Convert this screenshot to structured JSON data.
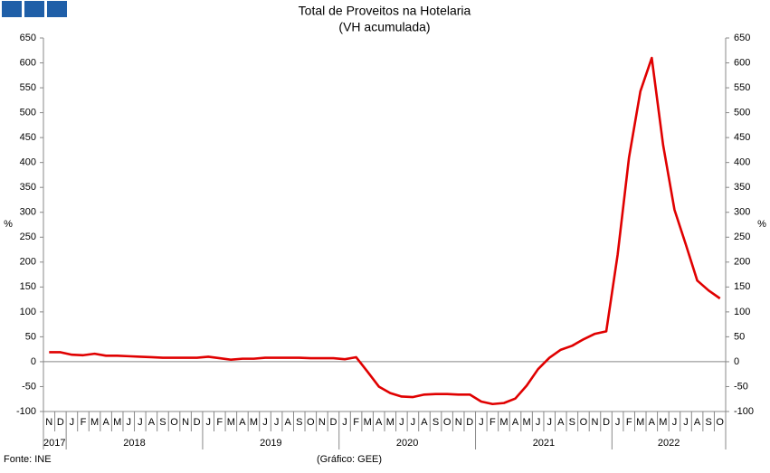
{
  "chart_data": {
    "type": "line",
    "title": "Total de Proveitos na Hotelaria",
    "subtitle": "(VH acumulada)",
    "y_label": "%",
    "source": "Fonte: INE",
    "credit": "(Gráfico: GEE)",
    "categories": [
      "N",
      "D",
      "J",
      "F",
      "M",
      "A",
      "M",
      "J",
      "J",
      "A",
      "S",
      "O",
      "N",
      "D",
      "J",
      "F",
      "M",
      "A",
      "M",
      "J",
      "J",
      "A",
      "S",
      "O",
      "N",
      "D",
      "J",
      "F",
      "M",
      "A",
      "M",
      "J",
      "J",
      "A",
      "S",
      "O",
      "N",
      "D",
      "J",
      "F",
      "M",
      "A",
      "M",
      "J",
      "J",
      "A",
      "S",
      "O",
      "N",
      "D",
      "J",
      "F",
      "M",
      "A",
      "M",
      "J",
      "J",
      "A",
      "S",
      "O"
    ],
    "category_years": [
      "2017",
      "2017",
      "2018",
      "2018",
      "2018",
      "2018",
      "2018",
      "2018",
      "2018",
      "2018",
      "2018",
      "2018",
      "2018",
      "2018",
      "2019",
      "2019",
      "2019",
      "2019",
      "2019",
      "2019",
      "2019",
      "2019",
      "2019",
      "2019",
      "2019",
      "2019",
      "2020",
      "2020",
      "2020",
      "2020",
      "2020",
      "2020",
      "2020",
      "2020",
      "2020",
      "2020",
      "2020",
      "2020",
      "2021",
      "2021",
      "2021",
      "2021",
      "2021",
      "2021",
      "2021",
      "2021",
      "2021",
      "2021",
      "2021",
      "2021",
      "2022",
      "2022",
      "2022",
      "2022",
      "2022",
      "2022",
      "2022",
      "2022",
      "2022",
      "2022"
    ],
    "series": [
      {
        "color": "#e00000",
        "values": [
          19,
          19,
          14,
          13,
          16,
          12,
          12,
          11,
          10,
          9,
          8,
          8,
          8,
          8,
          10,
          7,
          4,
          6,
          6,
          8,
          8,
          8,
          8,
          7,
          7,
          7,
          5,
          9,
          -20,
          -50,
          -63,
          -70,
          -71,
          -66,
          -65,
          -65,
          -66,
          -66,
          -80,
          -85,
          -83,
          -74,
          -48,
          -15,
          8,
          24,
          32,
          45,
          56,
          61,
          215,
          410,
          543,
          610,
          435,
          305,
          235,
          163,
          143,
          127
        ]
      }
    ],
    "ylim": [
      -100,
      650
    ],
    "yticks": [
      -100,
      -50,
      0,
      50,
      100,
      150,
      200,
      250,
      300,
      350,
      400,
      450,
      500,
      550,
      600,
      650
    ],
    "grid": false
  }
}
